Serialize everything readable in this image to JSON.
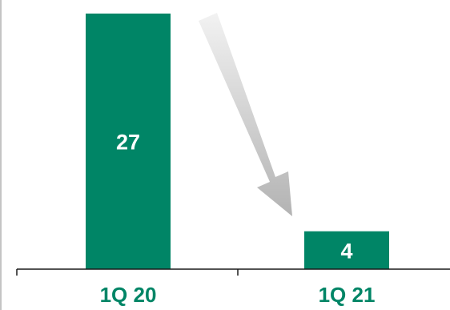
{
  "chart_data": {
    "type": "bar",
    "categories": [
      "1Q 20",
      "1Q 21"
    ],
    "values": [
      27,
      4
    ],
    "data_labels": [
      "27",
      "4"
    ],
    "ylim": [
      0,
      27.5
    ],
    "title": "",
    "xlabel": "",
    "ylabel": "",
    "grid": false,
    "legend": "none",
    "annotations": [
      "downward-arrow-from-1Q20-to-1Q21"
    ],
    "colors": {
      "bar": "#008566",
      "bar_label": "#ffffff",
      "category_label": "#008566",
      "axis": "#1a1a1a",
      "arrow_light": "#f2f2f2",
      "arrow_dark": "#b3b3b3"
    }
  }
}
